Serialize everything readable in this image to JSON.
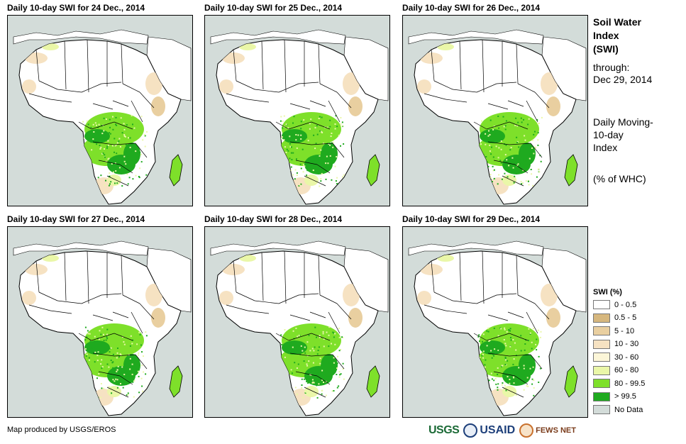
{
  "panels": [
    {
      "title": "Daily 10-day  SWI for 24 Dec., 2014"
    },
    {
      "title": "Daily 10-day  SWI for 25 Dec., 2014"
    },
    {
      "title": "Daily 10-day  SWI for 26 Dec., 2014"
    },
    {
      "title": "Daily 10-day  SWI for 27 Dec., 2014"
    },
    {
      "title": "Daily 10-day  SWI for 28 Dec., 2014"
    },
    {
      "title": "Daily 10-day  SWI for 29 Dec., 2014"
    }
  ],
  "side": {
    "title_line1": "Soil Water",
    "title_line2": "Index",
    "title_line3": "(SWI)",
    "through_label": "through:",
    "through_date": "Dec 29, 2014",
    "desc_line1": "Daily Moving-",
    "desc_line2": "10-day",
    "desc_line3": "Index",
    "unit": "(% of WHC)"
  },
  "legend": {
    "title": "SWI (%)",
    "items": [
      {
        "label": "0 - 0.5",
        "color": "#ffffff"
      },
      {
        "label": "0.5 - 5",
        "color": "#d6b77e"
      },
      {
        "label": "5 - 10",
        "color": "#e9cfa0"
      },
      {
        "label": "10 - 30",
        "color": "#f6e2c2"
      },
      {
        "label": "30 - 60",
        "color": "#fcf6d8"
      },
      {
        "label": "60 - 80",
        "color": "#eaf7a8"
      },
      {
        "label": "80 - 99.5",
        "color": "#7ee02a"
      },
      {
        "label": "> 99.5",
        "color": "#1faa1f"
      },
      {
        "label": "No Data",
        "color": "#d3dcd9"
      }
    ]
  },
  "credit": "Map produced by USGS/EROS",
  "logos": {
    "usgs": "USGS",
    "usaid": "USAID",
    "fews": "FEWS NET"
  },
  "colors": {
    "land": "#ffffff",
    "sea": "#d3dcd9",
    "border": "#000000"
  }
}
